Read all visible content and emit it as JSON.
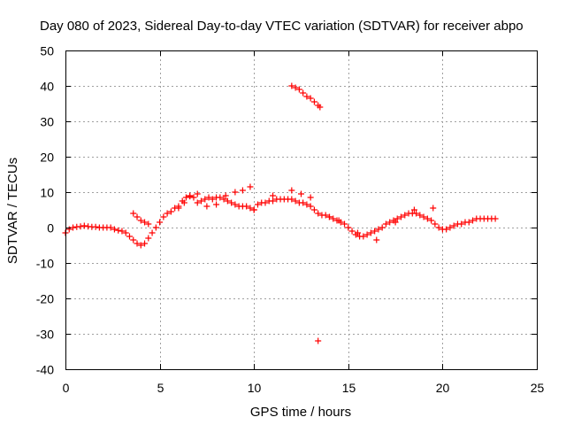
{
  "chart_data": {
    "type": "scatter",
    "title": "Day 080 of 2023, Sidereal Day-to-day VTEC variation (SDTVAR) for receiver abpo",
    "xlabel": "GPS time / hours",
    "ylabel": "SDTVAR / TECUs",
    "xlim": [
      0,
      25
    ],
    "ylim": [
      -40,
      50
    ],
    "xticks": [
      0,
      5,
      10,
      15,
      20,
      25
    ],
    "yticks": [
      -40,
      -30,
      -20,
      -10,
      0,
      10,
      20,
      30,
      40,
      50
    ],
    "xtick_labels": [
      "0",
      "5",
      "10",
      "15",
      "20",
      "25"
    ],
    "ytick_labels": [
      "-40",
      "-30",
      "-20",
      "-10",
      "0",
      "10",
      "20",
      "30",
      "40",
      "50"
    ],
    "grid": true,
    "marker": "+",
    "color": "#ff0000",
    "series": [
      {
        "name": "SDTVAR",
        "x": [
          0.0,
          0.2,
          0.4,
          0.6,
          0.8,
          1.0,
          1.2,
          1.4,
          1.6,
          1.8,
          2.0,
          2.2,
          2.4,
          2.6,
          2.8,
          3.0,
          3.2,
          3.4,
          3.6,
          3.8,
          4.0,
          4.2,
          4.4,
          4.6,
          4.8,
          5.0,
          5.2,
          5.4,
          5.6,
          5.8,
          6.0,
          6.2,
          6.4,
          6.6,
          6.8,
          7.0,
          7.2,
          7.4,
          7.6,
          7.8,
          8.0,
          8.2,
          8.4,
          8.6,
          8.8,
          9.0,
          9.2,
          9.4,
          9.6,
          9.8,
          10.0,
          10.2,
          10.4,
          10.6,
          10.8,
          11.0,
          11.2,
          11.4,
          11.6,
          11.8,
          12.0,
          12.2,
          12.4,
          12.6,
          12.8,
          13.0,
          13.2,
          13.4,
          13.6,
          13.8,
          14.0,
          14.2,
          14.4,
          14.6,
          14.8,
          15.0,
          15.2,
          15.4,
          15.6,
          15.8,
          16.0,
          16.2,
          16.4,
          16.6,
          16.8,
          17.0,
          17.2,
          17.4,
          17.6,
          17.8,
          18.0,
          18.2,
          18.4,
          18.6,
          18.8,
          19.0,
          19.2,
          19.4,
          19.6,
          19.8,
          20.0,
          20.2,
          20.4,
          20.6,
          20.8,
          21.0,
          21.2,
          21.4,
          21.6,
          21.8,
          22.0,
          22.2,
          22.4,
          22.6,
          22.8,
          3.6,
          3.8,
          4.0,
          4.2,
          4.4,
          6.0,
          6.3,
          6.6,
          7.0,
          7.5,
          8.0,
          8.5,
          9.0,
          9.4,
          9.8,
          10.0,
          11.0,
          12.0,
          12.5,
          13.0,
          14.0,
          14.5,
          15.5,
          16.5,
          17.5,
          18.5,
          19.5,
          12.0,
          12.2,
          12.4,
          12.6,
          12.8,
          13.0,
          13.2,
          13.4,
          13.5,
          13.4
        ],
        "y": [
          -1.5,
          -0.5,
          0.0,
          0.2,
          0.3,
          0.5,
          0.3,
          0.2,
          0.2,
          0.0,
          0.0,
          0.0,
          0.0,
          -0.5,
          -0.8,
          -1.0,
          -1.5,
          -2.5,
          -3.5,
          -4.5,
          -5.0,
          -4.5,
          -3.0,
          -1.5,
          0.0,
          1.5,
          3.0,
          4.0,
          4.5,
          5.5,
          6.0,
          7.5,
          8.5,
          8.8,
          8.5,
          7.0,
          7.5,
          8.0,
          8.5,
          8.0,
          8.5,
          8.5,
          8.0,
          7.5,
          7.0,
          6.5,
          6.0,
          6.0,
          6.0,
          5.5,
          5.0,
          6.5,
          7.0,
          7.0,
          7.5,
          7.5,
          8.0,
          8.0,
          8.0,
          8.0,
          8.0,
          7.5,
          7.0,
          7.0,
          6.5,
          6.0,
          5.0,
          4.0,
          3.5,
          3.5,
          3.0,
          2.5,
          2.0,
          1.5,
          1.0,
          0.0,
          -1.0,
          -2.0,
          -2.5,
          -2.5,
          -2.0,
          -1.5,
          -1.0,
          -0.5,
          0.0,
          1.0,
          1.5,
          2.0,
          2.5,
          3.0,
          3.5,
          4.0,
          4.0,
          4.0,
          3.5,
          3.0,
          2.5,
          2.0,
          1.0,
          0.0,
          -0.5,
          -0.5,
          0.0,
          0.5,
          1.0,
          1.0,
          1.5,
          1.5,
          2.0,
          2.5,
          2.5,
          2.5,
          2.5,
          2.5,
          2.5,
          4.0,
          3.0,
          2.0,
          1.5,
          1.0,
          5.5,
          7.0,
          9.0,
          9.5,
          6.0,
          6.5,
          9.0,
          10.0,
          10.5,
          11.5,
          5.0,
          9.0,
          10.5,
          9.5,
          8.5,
          3.0,
          2.0,
          -1.5,
          -3.5,
          1.5,
          5.0,
          5.5,
          40.0,
          39.5,
          39.0,
          38.0,
          37.0,
          36.5,
          35.5,
          34.5,
          34.0,
          -32.0
        ]
      }
    ]
  }
}
